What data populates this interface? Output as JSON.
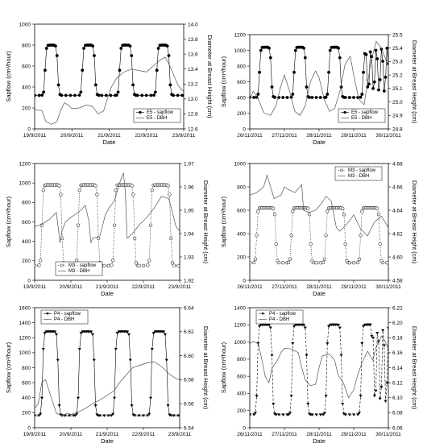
{
  "chart_data": [
    {
      "type": "scatter",
      "panel": "top-left",
      "xlabel": "Date",
      "ylabel_left": "Sapflow (cm³/hour)",
      "ylabel_right": "Diameter at Breast Height (cm)",
      "x_ticks": [
        "19/9/2011",
        "20/9/2011",
        "21/9/2011",
        "22/9/2011",
        "23/9/2011"
      ],
      "x_range": [
        19,
        23
      ],
      "ylim_left": [
        0,
        1000
      ],
      "y_ticks_left": [
        0,
        200,
        400,
        600,
        800,
        1000
      ],
      "ylim_right": [
        12.6,
        14.0
      ],
      "y_ticks_right": [
        12.6,
        12.8,
        13.0,
        13.2,
        13.4,
        13.6,
        13.8,
        14.0
      ],
      "legend_position": "bottom-right",
      "series": [
        {
          "name": "E5 - sapflow",
          "axis": "left",
          "marker": "filled-circle",
          "line": "solid",
          "period": 1,
          "night": 320,
          "day": 800,
          "rise": 0.28,
          "fall": 0.62
        },
        {
          "name": "E5 - DBH",
          "axis": "right",
          "marker": "none",
          "line": "solid",
          "x": [
            19.0,
            19.1,
            19.2,
            19.3,
            19.45,
            19.6,
            19.7,
            19.8,
            19.9,
            20.0,
            20.2,
            20.4,
            20.55,
            20.7,
            20.85,
            20.95,
            21.05,
            21.2,
            21.4,
            21.6,
            21.8,
            22.0,
            22.2,
            22.4,
            22.5,
            22.6,
            22.75,
            22.85,
            22.95,
            23.0
          ],
          "y": [
            12.86,
            12.85,
            12.84,
            12.7,
            12.66,
            12.7,
            12.85,
            12.95,
            12.92,
            12.87,
            12.88,
            12.92,
            12.9,
            12.8,
            12.84,
            13.0,
            13.15,
            13.28,
            13.36,
            13.4,
            13.38,
            13.36,
            13.45,
            13.53,
            13.56,
            13.47,
            13.3,
            13.18,
            13.12,
            13.1
          ]
        }
      ]
    },
    {
      "type": "scatter",
      "panel": "top-right",
      "xlabel": "Date",
      "ylabel_left": "Sapflow (cm³/hour)",
      "ylabel_right": "Diameter at Breast Height (cm)",
      "x_ticks": [
        "26/11/2011",
        "27/11/2011",
        "28/11/2011",
        "29/11/2011",
        "30/11/2011"
      ],
      "x_range": [
        26,
        30
      ],
      "ylim_left": [
        0,
        1200
      ],
      "y_ticks_left": [
        0,
        200,
        400,
        600,
        800,
        1000,
        1200
      ],
      "ylim_right": [
        24.8,
        25.5
      ],
      "y_ticks_right": [
        24.8,
        24.9,
        25.0,
        25.1,
        25.2,
        25.3,
        25.4,
        25.5
      ],
      "legend_position": "bottom-right",
      "series": [
        {
          "name": "E5 - sapflow",
          "axis": "left",
          "marker": "filled-circle",
          "line": "solid",
          "period": 1,
          "night": 400,
          "day": 1040,
          "rise": 0.28,
          "fall": 0.62,
          "irregular_from": 29.3
        },
        {
          "name": "E5 - DBH",
          "axis": "right",
          "marker": "none",
          "line": "solid",
          "x": [
            26.0,
            26.1,
            26.25,
            26.4,
            26.6,
            26.75,
            26.9,
            27.0,
            27.15,
            27.3,
            27.45,
            27.6,
            27.75,
            27.9,
            28.0,
            28.15,
            28.3,
            28.45,
            28.6,
            28.75,
            28.9,
            29.0,
            29.15,
            29.3,
            29.5,
            29.65,
            29.8,
            29.95,
            30.0
          ],
          "y": [
            25.02,
            25.08,
            25.02,
            24.92,
            24.9,
            24.97,
            25.12,
            25.2,
            25.08,
            24.93,
            24.9,
            24.97,
            25.15,
            25.23,
            25.18,
            25.02,
            24.93,
            24.95,
            25.08,
            25.28,
            25.34,
            25.2,
            25.02,
            24.98,
            25.3,
            25.45,
            25.4,
            25.3,
            25.32
          ]
        }
      ]
    },
    {
      "type": "scatter",
      "panel": "middle-left",
      "xlabel": "Date",
      "ylabel_left": "Sapflow (cm³/hour)",
      "ylabel_right": "Diameter at Breast Height (cm)",
      "x_ticks": [
        "19/9/2011",
        "20/9/2011",
        "21/9/2011",
        "22/9/2011",
        "23/9/2011"
      ],
      "x_range": [
        19,
        23
      ],
      "ylim_left": [
        0,
        1200
      ],
      "y_ticks_left": [
        0,
        200,
        400,
        600,
        800,
        1000,
        1200
      ],
      "ylim_right": [
        1.92,
        1.97
      ],
      "y_ticks_right": [
        1.92,
        1.93,
        1.94,
        1.95,
        1.96,
        1.97
      ],
      "legend_position": "bottom-left",
      "series": [
        {
          "name": "M3 - sapflow",
          "axis": "left",
          "marker": "open-circle",
          "line": "dotted",
          "period": 1,
          "night": 150,
          "day": 980,
          "rise": 0.2,
          "fall": 0.75
        },
        {
          "name": "M3 - DBH",
          "axis": "right",
          "marker": "none",
          "line": "solid",
          "x": [
            19.0,
            19.2,
            19.4,
            19.6,
            19.7,
            19.75,
            19.85,
            20.0,
            20.2,
            20.4,
            20.5,
            20.55,
            20.6,
            20.8,
            20.95,
            21.05,
            21.2,
            21.35,
            21.45,
            21.5,
            21.55,
            21.7,
            21.9,
            22.1,
            22.3,
            22.5,
            22.7,
            22.9,
            23.0
          ],
          "y": [
            1.943,
            1.944,
            1.946,
            1.949,
            1.936,
            1.941,
            1.945,
            1.947,
            1.949,
            1.952,
            1.945,
            1.936,
            1.938,
            1.939,
            1.948,
            1.951,
            1.954,
            1.962,
            1.966,
            1.958,
            1.938,
            1.94,
            1.944,
            1.947,
            1.951,
            1.956,
            1.955,
            1.943,
            1.941
          ]
        }
      ]
    },
    {
      "type": "scatter",
      "panel": "middle-right",
      "xlabel": "Date",
      "ylabel_left": "Sapflow (cm³/hour)",
      "ylabel_right": "Diameter at Breast Height (cm)",
      "x_ticks": [
        "26/11/2011",
        "27/11/2011",
        "28/11/2011",
        "29/11/2011",
        "30/11/2011"
      ],
      "x_range": [
        26,
        30
      ],
      "ylim_left": [
        0,
        1000
      ],
      "y_ticks_left": [
        0,
        200,
        400,
        600,
        800,
        1000
      ],
      "ylim_right": [
        4.58,
        4.68
      ],
      "y_ticks_right": [
        4.58,
        4.6,
        4.62,
        4.64,
        4.66,
        4.68
      ],
      "legend_position": "top-right",
      "series": [
        {
          "name": "M3 - sapflow",
          "axis": "left",
          "marker": "open-circle",
          "line": "dotted",
          "period": 1,
          "night": 150,
          "day": 620,
          "rise": 0.2,
          "fall": 0.75
        },
        {
          "name": "M3 - DBH",
          "axis": "right",
          "marker": "none",
          "line": "solid",
          "x": [
            26.0,
            26.2,
            26.4,
            26.5,
            26.55,
            26.7,
            26.9,
            27.0,
            27.1,
            27.3,
            27.5,
            27.55,
            27.7,
            27.9,
            28.05,
            28.2,
            28.35,
            28.5,
            28.6,
            28.8,
            29.0,
            29.2,
            29.4,
            29.6,
            29.8,
            30.0
          ],
          "y": [
            4.653,
            4.655,
            4.66,
            4.67,
            4.665,
            4.65,
            4.653,
            4.66,
            4.658,
            4.655,
            4.662,
            4.64,
            4.638,
            4.64,
            4.645,
            4.652,
            4.648,
            4.625,
            4.622,
            4.628,
            4.636,
            4.624,
            4.618,
            4.63,
            4.635,
            4.625
          ]
        }
      ]
    },
    {
      "type": "scatter",
      "panel": "bottom-left",
      "xlabel": "Date",
      "ylabel_left": "Sapflow (cm³/hour)",
      "ylabel_right": "Diameter at Breast Height (cm)",
      "x_ticks": [
        "19/9/2011",
        "20/9/2011",
        "21/9/2011",
        "22/9/2011",
        "23/9/2011"
      ],
      "x_range": [
        19,
        23
      ],
      "ylim_left": [
        0,
        1600
      ],
      "y_ticks_left": [
        0,
        200,
        400,
        600,
        800,
        1000,
        1200,
        1400,
        1600
      ],
      "ylim_right": [
        6.54,
        6.64
      ],
      "y_ticks_right": [
        6.54,
        6.56,
        6.58,
        6.6,
        6.62,
        6.64
      ],
      "legend_position": "top-left",
      "series": [
        {
          "name": "P4 - sapflow",
          "axis": "left",
          "marker": "filled-triangle-down",
          "line": "solid",
          "period": 1,
          "night": 160,
          "day": 1280,
          "rise": 0.22,
          "fall": 0.65
        },
        {
          "name": "P4 - DBH",
          "axis": "right",
          "marker": "none",
          "line": "solid",
          "x": [
            19.0,
            19.1,
            19.2,
            19.3,
            19.45,
            19.6,
            19.75,
            19.9,
            20.0,
            20.2,
            20.4,
            20.6,
            20.8,
            21.0,
            21.2,
            21.35,
            21.5,
            21.7,
            21.9,
            22.1,
            22.3,
            22.5,
            22.7,
            22.9,
            23.0
          ],
          "y": [
            6.556,
            6.56,
            6.578,
            6.58,
            6.566,
            6.552,
            6.55,
            6.552,
            6.551,
            6.553,
            6.556,
            6.56,
            6.563,
            6.567,
            6.571,
            6.578,
            6.583,
            6.59,
            6.592,
            6.594,
            6.595,
            6.591,
            6.585,
            6.581,
            6.58
          ]
        }
      ]
    },
    {
      "type": "scatter",
      "panel": "bottom-right",
      "xlabel": "Date",
      "ylabel_left": "Sapflow (cm³/hour)",
      "ylabel_right": "Diameter at Breast Height (cm)",
      "x_ticks": [
        "26/11/2011",
        "27/11/2011",
        "28/11/2011",
        "29/11/2011",
        "30/11/2011"
      ],
      "x_range": [
        26,
        30
      ],
      "ylim_left": [
        0,
        1400
      ],
      "y_ticks_left": [
        0,
        200,
        400,
        600,
        800,
        1000,
        1200,
        1400
      ],
      "ylim_right": [
        6.06,
        6.22
      ],
      "y_ticks_right": [
        6.06,
        6.08,
        6.1,
        6.12,
        6.14,
        6.16,
        6.18,
        6.2,
        6.22
      ],
      "legend_position": "top-left",
      "series": [
        {
          "name": "P4 - sapflow",
          "axis": "left",
          "marker": "filled-triangle-down",
          "line": "dashed",
          "period": 1,
          "night": 150,
          "day": 1200,
          "rise": 0.22,
          "fall": 0.65,
          "irregular_from": 29.5
        },
        {
          "name": "P4 - DBH",
          "axis": "right",
          "marker": "none",
          "line": "solid",
          "x": [
            26.0,
            26.1,
            26.25,
            26.35,
            26.45,
            26.55,
            26.65,
            26.8,
            26.9,
            27.0,
            27.2,
            27.4,
            27.5,
            27.6,
            27.75,
            27.9,
            28.0,
            28.1,
            28.3,
            28.45,
            28.55,
            28.7,
            28.85,
            29.0,
            29.1,
            29.25,
            29.4,
            29.55,
            29.65,
            29.8,
            29.9,
            30.0
          ],
          "y": [
            6.172,
            6.175,
            6.172,
            6.15,
            6.128,
            6.12,
            6.14,
            6.15,
            6.16,
            6.166,
            6.165,
            6.16,
            6.14,
            6.124,
            6.116,
            6.118,
            6.14,
            6.156,
            6.158,
            6.15,
            6.13,
            6.12,
            6.1,
            6.11,
            6.128,
            6.148,
            6.162,
            6.15,
            6.168,
            6.182,
            6.176,
            6.165
          ]
        }
      ]
    }
  ]
}
